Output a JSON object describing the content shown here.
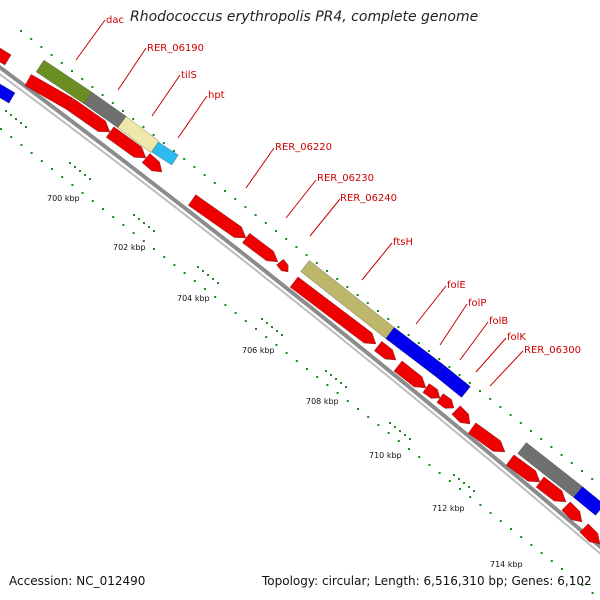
{
  "title": "Rhodococcus erythropolis PR4, complete genome",
  "accession": "Accession: NC_012490",
  "topology": "Topology: circular; Length: 6,516,310 bp; Genes: 6,102",
  "colors": {
    "backbone": "#8c8c8c",
    "red_feature": "#ee0000",
    "tick_green": "#1a8a1a",
    "label_red": "#cc0000"
  },
  "gene_labels": [
    "dac",
    "RER_06190",
    "tilS",
    "hpt",
    "RER_06220",
    "RER_06230",
    "RER_06240",
    "ftsH",
    "folE",
    "folP",
    "folB",
    "folK",
    "RER_06300"
  ],
  "kbp_labels": [
    "700 kbp",
    "702 kbp",
    "704 kbp",
    "706 kbp",
    "708 kbp",
    "710 kbp",
    "712 kbp",
    "714 kbp"
  ]
}
